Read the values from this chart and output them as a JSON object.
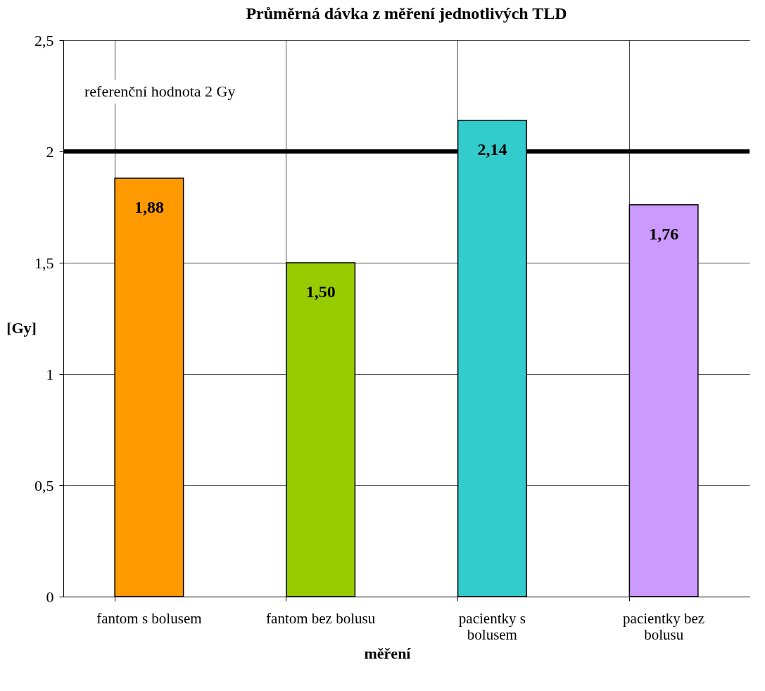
{
  "chart_data": {
    "type": "bar",
    "title": "Průměrná dávka z měření jednotlivých TLD",
    "xlabel": "měření",
    "ylabel": "[Gy]",
    "categories": [
      "fantom s bolusem",
      "fantom bez bolusu",
      "pacientky s bolusem",
      "pacientky bez bolusu"
    ],
    "values": [
      1.88,
      1.5,
      2.14,
      1.76
    ],
    "value_labels": [
      "1,88",
      "1,50",
      "2,14",
      "1,76"
    ],
    "colors": [
      "#ff9900",
      "#99cc00",
      "#33cccc",
      "#cc99ff"
    ],
    "ylim": [
      0,
      2.5
    ],
    "yticks": [
      0,
      {
        "value": 0.5,
        "label": "0,5"
      },
      1,
      {
        "value": 1.5,
        "label": "1,5"
      },
      2,
      {
        "value": 2.5,
        "label": "2,5"
      }
    ],
    "grid": true,
    "ref_lines": [
      {
        "axis": "y",
        "value": 2,
        "label": "referenční hodnota 2 Gy",
        "color": "#000000",
        "line_style": "solid"
      }
    ]
  }
}
